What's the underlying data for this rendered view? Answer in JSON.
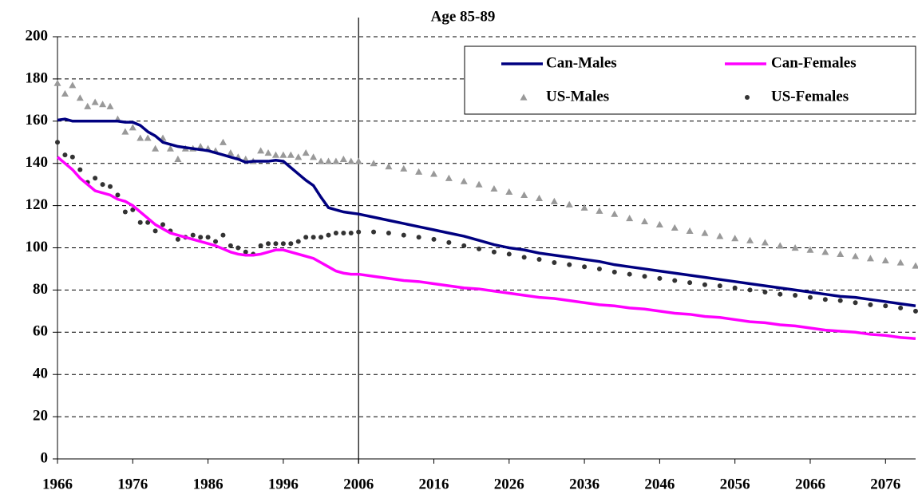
{
  "chart_data": {
    "type": "line",
    "title": "Age 85-89",
    "x": [
      1966,
      1967,
      1968,
      1969,
      1970,
      1971,
      1972,
      1973,
      1974,
      1975,
      1976,
      1977,
      1978,
      1979,
      1980,
      1981,
      1982,
      1983,
      1984,
      1985,
      1986,
      1987,
      1988,
      1989,
      1990,
      1991,
      1992,
      1993,
      1994,
      1995,
      1996,
      1997,
      1998,
      1999,
      2000,
      2001,
      2002,
      2003,
      2004,
      2005,
      2006,
      2008,
      2010,
      2012,
      2014,
      2016,
      2018,
      2020,
      2022,
      2024,
      2026,
      2028,
      2030,
      2032,
      2034,
      2036,
      2038,
      2040,
      2042,
      2044,
      2046,
      2048,
      2050,
      2052,
      2054,
      2056,
      2058,
      2060,
      2062,
      2064,
      2066,
      2068,
      2070,
      2072,
      2074,
      2076,
      2078,
      2080
    ],
    "series": [
      {
        "name": "Can-Males",
        "color": "#000080",
        "marker": "line",
        "values": [
          160.5,
          161,
          160,
          160,
          160,
          160,
          160,
          160,
          160,
          159.5,
          159.5,
          158,
          155,
          153,
          150,
          149,
          148,
          147.5,
          147,
          146.5,
          146,
          145,
          144,
          143,
          142,
          140.5,
          141,
          141,
          141,
          141.5,
          141,
          138,
          135,
          132,
          129.5,
          124,
          119,
          118,
          117,
          116.5,
          116,
          114.5,
          113,
          111.5,
          110,
          108.5,
          107,
          105.5,
          103.5,
          101.5,
          100,
          99,
          97.5,
          96.5,
          95.5,
          94.5,
          93.5,
          92,
          91,
          90,
          89,
          88,
          87,
          86,
          85,
          84,
          83,
          82,
          81,
          80,
          79,
          78,
          77,
          76.5,
          75.5,
          74.5,
          73.5,
          72.5
        ]
      },
      {
        "name": "Can-Females",
        "color": "#ff00ff",
        "marker": "line",
        "values": [
          143,
          140,
          137,
          133,
          130,
          127,
          126,
          125,
          123,
          122,
          120,
          117,
          114,
          111,
          109,
          107,
          106,
          105,
          104,
          103,
          102,
          101,
          99.5,
          98,
          97,
          96.5,
          96.5,
          97,
          98,
          99,
          99,
          98,
          97,
          96,
          95,
          93,
          91,
          89,
          88,
          87.5,
          87.5,
          86.5,
          85.5,
          84.5,
          84,
          83,
          82,
          81,
          80.5,
          79.5,
          78.5,
          77.5,
          76.5,
          76,
          75,
          74,
          73,
          72.5,
          71.5,
          71,
          70,
          69,
          68.5,
          67.5,
          67,
          66,
          65,
          64.5,
          63.5,
          63,
          62,
          61,
          60.5,
          60,
          59,
          58.5,
          57.5,
          57
        ]
      },
      {
        "name": "US-Males",
        "color": "#999999",
        "marker": "triangle",
        "values": [
          178,
          173,
          177,
          171,
          167,
          169,
          168,
          167,
          161,
          155,
          157,
          152,
          152,
          147,
          152,
          147,
          142,
          147,
          147,
          148,
          147,
          146,
          150,
          145,
          143,
          142,
          141,
          146,
          145,
          144,
          144,
          144,
          143,
          145,
          143,
          141,
          141,
          141,
          142,
          141,
          141,
          140,
          138.5,
          137.5,
          136,
          135,
          133,
          131.5,
          130,
          128,
          126.5,
          125,
          123.5,
          122,
          120.5,
          119,
          117.5,
          116,
          114,
          112.5,
          111,
          109.5,
          108,
          107,
          105.5,
          104.5,
          103.5,
          102.5,
          101,
          100,
          99,
          98,
          97,
          96,
          95,
          94,
          93,
          91.5
        ]
      },
      {
        "name": "US-Females",
        "color": "#333333",
        "marker": "circle",
        "values": [
          150,
          144,
          143,
          137,
          131,
          133,
          130,
          129,
          125,
          117,
          118,
          112,
          112,
          108,
          111,
          108,
          104,
          105,
          106,
          105,
          105,
          103,
          106,
          101,
          100,
          98,
          97,
          101,
          102,
          102,
          102,
          102,
          103,
          105,
          105,
          105,
          106,
          107,
          107,
          107,
          107.5,
          107.5,
          107,
          106,
          105,
          104,
          102.5,
          101,
          99.5,
          98,
          97,
          95.5,
          94.5,
          93,
          92,
          91,
          90,
          88.5,
          87.5,
          86.5,
          85.5,
          84.5,
          83.5,
          82.5,
          82,
          81,
          80,
          79,
          78,
          77.5,
          76.5,
          75.5,
          75,
          74,
          73,
          72.5,
          71.5,
          70
        ]
      }
    ],
    "xlim": [
      1966,
      2080
    ],
    "xticks": [
      1966,
      1976,
      1986,
      1996,
      2006,
      2016,
      2026,
      2036,
      2046,
      2056,
      2066,
      2076
    ],
    "ylim": [
      0,
      200
    ],
    "yticks": [
      0,
      20,
      40,
      60,
      80,
      100,
      120,
      140,
      160,
      180,
      200
    ],
    "grid": true,
    "vline": 2006,
    "legend": "top-right"
  }
}
